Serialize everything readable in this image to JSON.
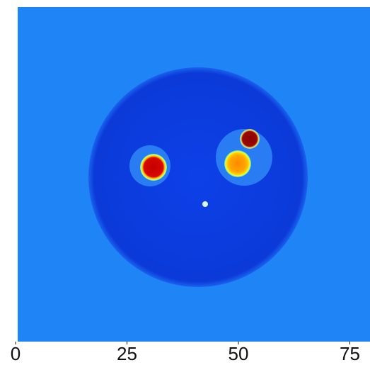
{
  "chart_data": {
    "type": "image",
    "xlim": [
      0,
      80
    ],
    "xticks": [
      0,
      25,
      50,
      75
    ]
  }
}
